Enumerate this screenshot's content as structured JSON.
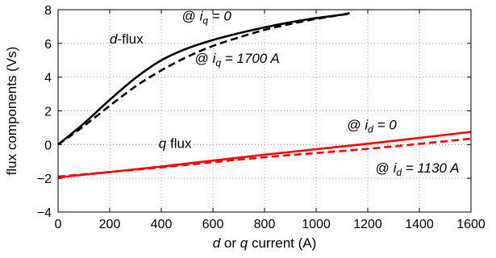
{
  "chart_data": {
    "type": "line",
    "title": "",
    "xlabel": {
      "parts": [
        [
          "d",
          true
        ],
        [
          " or ",
          false
        ],
        [
          "q",
          true
        ],
        [
          " current (A)",
          false
        ]
      ]
    },
    "ylabel": "flux components (Vs)",
    "xlim": [
      0,
      1600
    ],
    "ylim": [
      -4,
      8
    ],
    "xticks": [
      0,
      200,
      400,
      600,
      800,
      1000,
      1200,
      1400,
      1600
    ],
    "yticks": [
      -4,
      -2,
      0,
      2,
      4,
      6,
      8
    ],
    "xtick_labels": [
      "0",
      "200",
      "400",
      "600",
      "800",
      "1000",
      "1200",
      "1400",
      "1600"
    ],
    "ytick_labels": [
      "−4",
      "−2",
      "0",
      "2",
      "4",
      "6",
      "8"
    ],
    "grid": true,
    "colors": {
      "d_flux": "#000000",
      "q_flux": "#ff0000"
    },
    "series": [
      {
        "id": "d_iq0",
        "color": "#000000",
        "dash": false,
        "x": [
          0,
          100,
          200,
          300,
          400,
          500,
          600,
          700,
          800,
          900,
          1000,
          1100,
          1130
        ],
        "y": [
          0,
          1.25,
          2.65,
          3.95,
          5.0,
          5.7,
          6.2,
          6.6,
          6.95,
          7.25,
          7.5,
          7.7,
          7.8
        ]
      },
      {
        "id": "d_iq1700",
        "color": "#000000",
        "dash": true,
        "x": [
          0,
          100,
          200,
          300,
          400,
          500,
          600,
          700,
          800,
          900,
          1000,
          1100,
          1130
        ],
        "y": [
          0,
          1.1,
          2.3,
          3.45,
          4.4,
          5.2,
          5.85,
          6.35,
          6.8,
          7.15,
          7.45,
          7.7,
          7.75
        ]
      },
      {
        "id": "q_id0",
        "color": "#ff0000",
        "dash": false,
        "x": [
          0,
          400,
          800,
          1200,
          1600
        ],
        "y": [
          -1.95,
          -1.3,
          -0.6,
          0.05,
          0.75
        ]
      },
      {
        "id": "q_id1130",
        "color": "#ff0000",
        "dash": true,
        "x": [
          0,
          400,
          800,
          1200,
          1600
        ],
        "y": [
          -1.9,
          -1.35,
          -0.75,
          -0.25,
          0.35
        ]
      }
    ],
    "annotations": [
      {
        "id": "d-flux",
        "x": 200,
        "y": 6.0,
        "parts": [
          [
            "d",
            true
          ],
          [
            "-flux",
            false
          ]
        ]
      },
      {
        "id": "iq0",
        "x": 480,
        "y": 7.35,
        "parts": [
          [
            "@ ",
            false
          ],
          [
            "i",
            true
          ],
          [
            "q",
            true,
            "sub"
          ],
          [
            " = 0",
            true
          ]
        ]
      },
      {
        "id": "iq1700",
        "x": 530,
        "y": 4.85,
        "parts": [
          [
            "@ ",
            false
          ],
          [
            "i",
            true
          ],
          [
            "q",
            true,
            "sub"
          ],
          [
            " = 1700 A",
            true
          ]
        ]
      },
      {
        "id": "q-flux",
        "x": 390,
        "y": -0.2,
        "parts": [
          [
            "q",
            true
          ],
          [
            " flux",
            false
          ]
        ]
      },
      {
        "id": "id0",
        "x": 1120,
        "y": 0.9,
        "parts": [
          [
            "@ ",
            false
          ],
          [
            "i",
            true
          ],
          [
            "d",
            true,
            "sub"
          ],
          [
            " = 0",
            true
          ]
        ]
      },
      {
        "id": "id1130",
        "x": 1230,
        "y": -1.65,
        "parts": [
          [
            "@ ",
            false
          ],
          [
            "i",
            true
          ],
          [
            "d",
            true,
            "sub"
          ],
          [
            " = 1130 A",
            true
          ]
        ]
      }
    ]
  }
}
